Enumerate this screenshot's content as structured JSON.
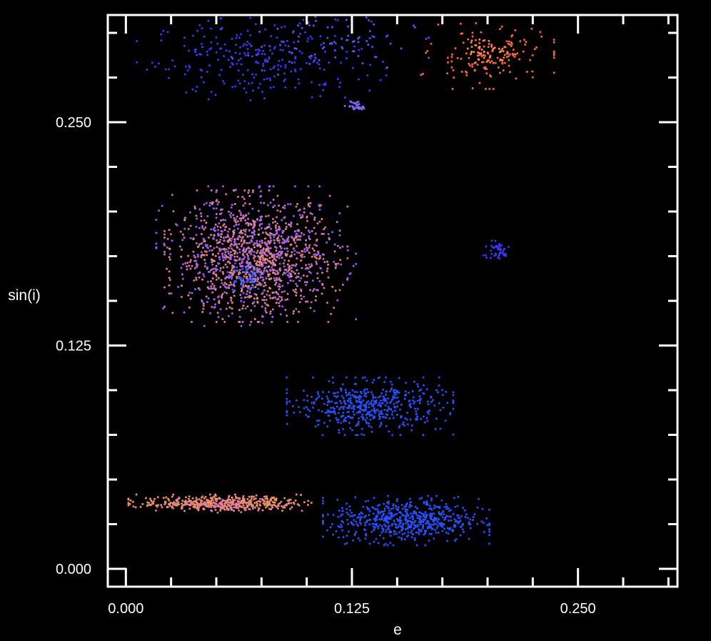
{
  "chart_data": {
    "type": "scatter",
    "title": "",
    "xlabel": "e",
    "ylabel": "sin(i)",
    "xlim": [
      -0.01,
      0.305
    ],
    "ylim": [
      -0.01,
      0.31
    ],
    "x_ticks": [
      "0.000",
      "0.125",
      "0.250"
    ],
    "y_ticks": [
      "0.000",
      "0.125",
      "0.250"
    ],
    "x_tick_values": [
      0.0,
      0.125,
      0.25
    ],
    "y_tick_values": [
      0.0,
      0.125,
      0.25
    ],
    "minor_step": 0.025,
    "grid": false,
    "legend": "none",
    "colors": {
      "background": "#000000",
      "axes": "#ffffff",
      "blue": "#2850ff",
      "violet": "#8a50ff",
      "pink": "#e878a8",
      "orange": "#f09860",
      "red_orange": "#ff6040"
    },
    "clusters": [
      {
        "color": "#3a3aff",
        "center": [
          0.075,
          0.285
        ],
        "spread": [
          0.03,
          0.011
        ],
        "count": 260
      },
      {
        "color": "#6a50ff",
        "center": [
          0.11,
          0.295
        ],
        "spread": [
          0.025,
          0.008
        ],
        "count": 90
      },
      {
        "color": "#8a6aff",
        "center": [
          0.128,
          0.259
        ],
        "spread": [
          0.003,
          0.0015
        ],
        "count": 30
      },
      {
        "color": "#ff6a40",
        "center": [
          0.2,
          0.287
        ],
        "spread": [
          0.016,
          0.008
        ],
        "count": 150
      },
      {
        "color": "#ff8a60",
        "center": [
          0.2,
          0.29
        ],
        "spread": [
          0.006,
          0.003
        ],
        "count": 40
      },
      {
        "color": "#d878b0",
        "center": [
          0.072,
          0.175
        ],
        "spread": [
          0.022,
          0.016
        ],
        "count": 700
      },
      {
        "color": "#9a60ff",
        "center": [
          0.072,
          0.175
        ],
        "spread": [
          0.024,
          0.017
        ],
        "count": 450
      },
      {
        "color": "#f09070",
        "center": [
          0.07,
          0.172
        ],
        "spread": [
          0.02,
          0.014
        ],
        "count": 250
      },
      {
        "color": "#3a5aff",
        "center": [
          0.066,
          0.163
        ],
        "spread": [
          0.005,
          0.005
        ],
        "count": 50
      },
      {
        "color": "#3a3aff",
        "center": [
          0.205,
          0.178
        ],
        "spread": [
          0.004,
          0.0025
        ],
        "count": 45
      },
      {
        "color": "#2850ff",
        "center": [
          0.135,
          0.091
        ],
        "spread": [
          0.02,
          0.007
        ],
        "count": 500
      },
      {
        "color": "#f09860",
        "center": [
          0.052,
          0.037
        ],
        "spread": [
          0.022,
          0.002
        ],
        "count": 350
      },
      {
        "color": "#e878a8",
        "center": [
          0.056,
          0.036
        ],
        "spread": [
          0.018,
          0.002
        ],
        "count": 150
      },
      {
        "color": "#2850ff",
        "center": [
          0.155,
          0.027
        ],
        "spread": [
          0.02,
          0.006
        ],
        "count": 600
      }
    ]
  }
}
